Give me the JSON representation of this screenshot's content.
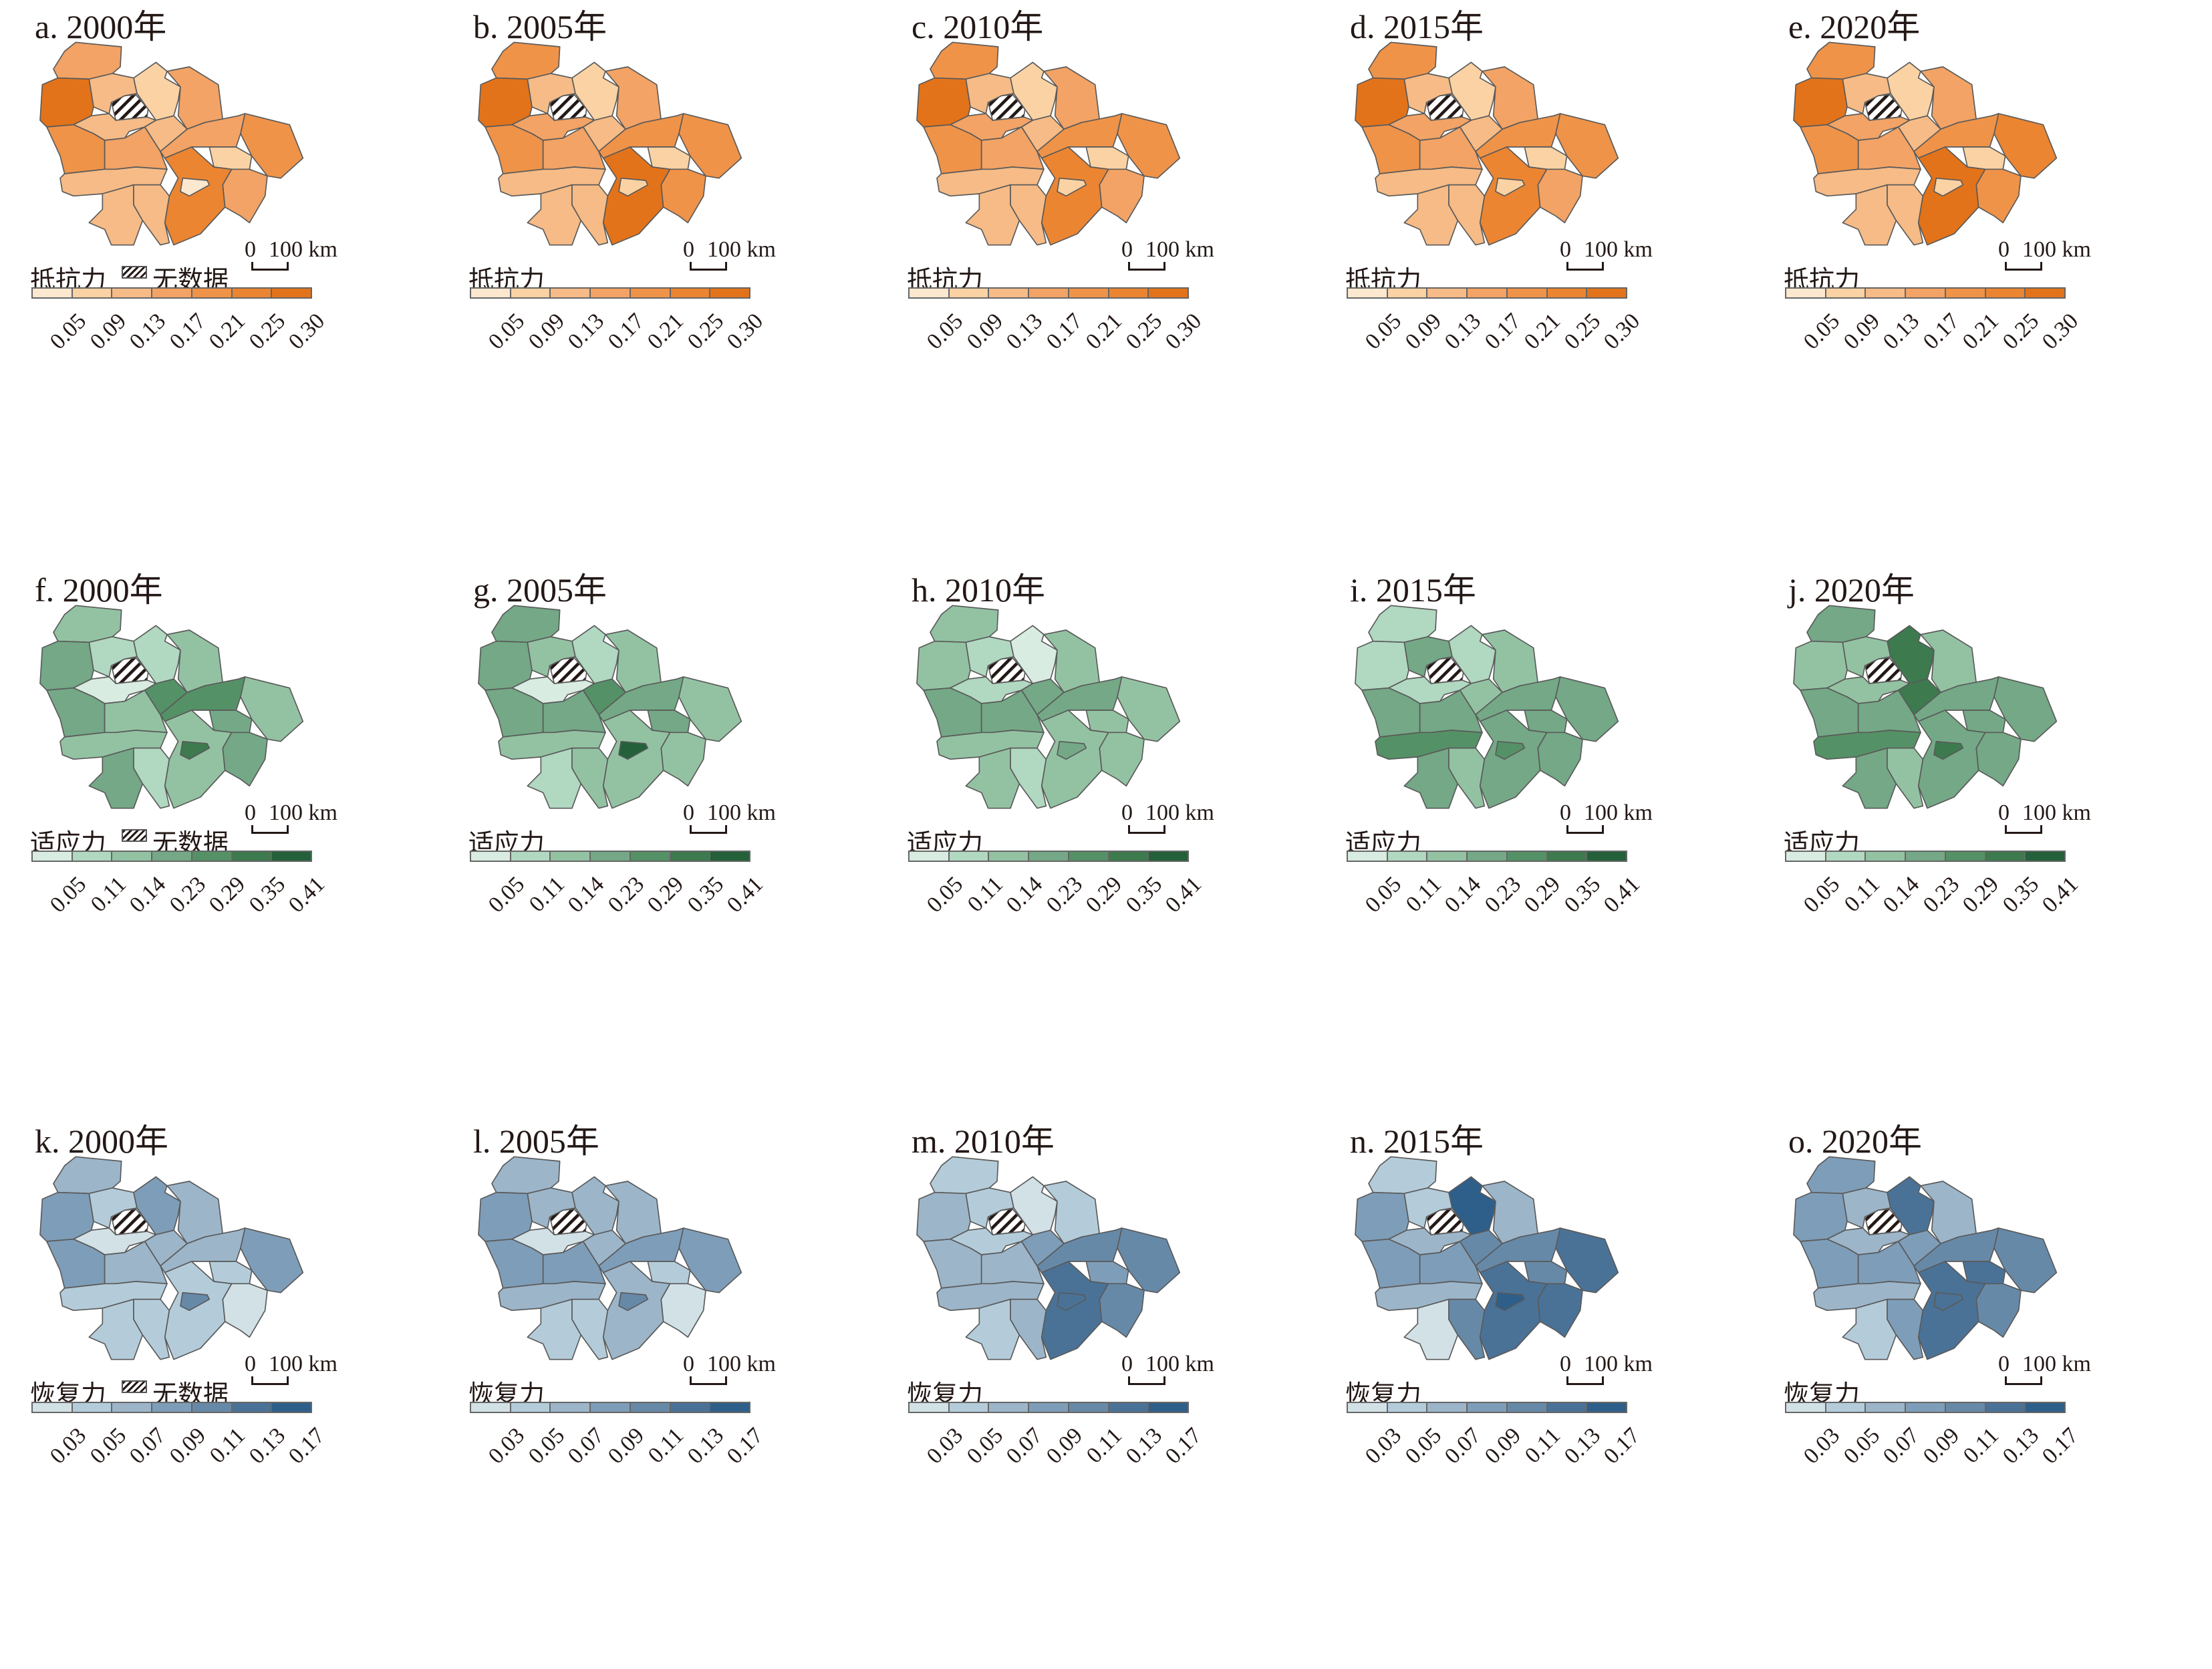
{
  "no_data_label": "无数据",
  "scale": {
    "zero": "0",
    "label": "100 km"
  },
  "legends": {
    "resistance": {
      "title": "抵抗力",
      "ticks": [
        "0.05",
        "0.09",
        "0.13",
        "0.17",
        "0.21",
        "0.25",
        "0.30"
      ],
      "colors": [
        "#fce7cf",
        "#fad2a4",
        "#f6bb86",
        "#f2a365",
        "#ef9349",
        "#eb8532",
        "#e2731a"
      ]
    },
    "adaptability": {
      "title": "适应力",
      "ticks": [
        "0.05",
        "0.11",
        "0.14",
        "0.23",
        "0.29",
        "0.35",
        "0.41"
      ],
      "colors": [
        "#d9ece2",
        "#b1d8c1",
        "#93c2a2",
        "#74a886",
        "#559166",
        "#3d7a4e",
        "#24613a"
      ]
    },
    "recovery": {
      "title": "恢复力",
      "ticks": [
        "0.03",
        "0.05",
        "0.07",
        "0.09",
        "0.11",
        "0.13",
        "0.17"
      ],
      "colors": [
        "#d2e1e6",
        "#b4ccda",
        "#9cb5c9",
        "#7e9db8",
        "#6789a8",
        "#4a7297",
        "#2e5f8a"
      ]
    }
  },
  "panels": [
    {
      "title": "a. 2000年",
      "legend": "resistance",
      "show_no_data": true,
      "classes": [
        3,
        6,
        2,
        1,
        3,
        2,
        4,
        3,
        2,
        3,
        4,
        1,
        2,
        5,
        3,
        2,
        2,
        0
      ]
    },
    {
      "title": "b. 2005年",
      "legend": "resistance",
      "show_no_data": false,
      "classes": [
        4,
        6,
        2,
        1,
        3,
        3,
        4,
        3,
        2,
        4,
        4,
        1,
        2,
        6,
        4,
        2,
        2,
        1
      ]
    },
    {
      "title": "c. 2010年",
      "legend": "resistance",
      "show_no_data": false,
      "classes": [
        4,
        6,
        2,
        1,
        3,
        3,
        4,
        3,
        2,
        4,
        4,
        1,
        2,
        5,
        3,
        2,
        2,
        1
      ]
    },
    {
      "title": "d. 2015年",
      "legend": "resistance",
      "show_no_data": false,
      "classes": [
        4,
        6,
        2,
        1,
        3,
        3,
        4,
        3,
        2,
        4,
        4,
        1,
        2,
        5,
        3,
        2,
        2,
        1
      ]
    },
    {
      "title": "e. 2020年",
      "legend": "resistance",
      "show_no_data": false,
      "classes": [
        4,
        6,
        2,
        1,
        3,
        3,
        4,
        3,
        2,
        4,
        5,
        1,
        2,
        6,
        4,
        2,
        2,
        1
      ]
    },
    {
      "title": "f. 2000年",
      "legend": "adaptability",
      "show_no_data": true,
      "classes": [
        2,
        3,
        1,
        1,
        2,
        0,
        3,
        2,
        4,
        4,
        2,
        3,
        2,
        2,
        3,
        3,
        1,
        5
      ]
    },
    {
      "title": "g. 2005年",
      "legend": "adaptability",
      "show_no_data": false,
      "classes": [
        3,
        3,
        2,
        1,
        2,
        0,
        3,
        3,
        4,
        3,
        2,
        3,
        2,
        2,
        2,
        1,
        2,
        6
      ]
    },
    {
      "title": "h. 2010年",
      "legend": "adaptability",
      "show_no_data": false,
      "classes": [
        2,
        2,
        1,
        0,
        2,
        1,
        3,
        3,
        3,
        3,
        2,
        2,
        2,
        2,
        2,
        2,
        1,
        3
      ]
    },
    {
      "title": "i. 2015年",
      "legend": "adaptability",
      "show_no_data": false,
      "classes": [
        1,
        1,
        3,
        1,
        2,
        1,
        3,
        3,
        2,
        3,
        3,
        3,
        4,
        3,
        3,
        3,
        2,
        4
      ]
    },
    {
      "title": "j. 2020年",
      "legend": "adaptability",
      "show_no_data": false,
      "classes": [
        3,
        2,
        2,
        5,
        2,
        2,
        3,
        3,
        5,
        3,
        3,
        3,
        4,
        3,
        3,
        3,
        2,
        5
      ]
    },
    {
      "title": "k. 2000年",
      "legend": "recovery",
      "show_no_data": true,
      "classes": [
        2,
        3,
        1,
        3,
        2,
        0,
        3,
        2,
        2,
        2,
        3,
        1,
        1,
        1,
        0,
        1,
        1,
        4
      ]
    },
    {
      "title": "l. 2005年",
      "legend": "recovery",
      "show_no_data": false,
      "classes": [
        2,
        3,
        2,
        2,
        2,
        0,
        3,
        3,
        2,
        3,
        3,
        1,
        2,
        2,
        0,
        1,
        1,
        4
      ]
    },
    {
      "title": "m. 2010年",
      "legend": "recovery",
      "show_no_data": false,
      "classes": [
        1,
        2,
        1,
        0,
        1,
        1,
        2,
        2,
        3,
        4,
        4,
        3,
        2,
        5,
        4,
        1,
        2,
        5
      ]
    },
    {
      "title": "n. 2015年",
      "legend": "recovery",
      "show_no_data": false,
      "classes": [
        1,
        3,
        1,
        6,
        2,
        2,
        3,
        3,
        4,
        4,
        5,
        4,
        2,
        5,
        5,
        0,
        4,
        6
      ]
    },
    {
      "title": "o. 2020年",
      "legend": "recovery",
      "show_no_data": false,
      "classes": [
        3,
        3,
        2,
        5,
        2,
        2,
        3,
        3,
        3,
        4,
        4,
        5,
        2,
        5,
        4,
        1,
        3,
        5
      ]
    }
  ]
}
